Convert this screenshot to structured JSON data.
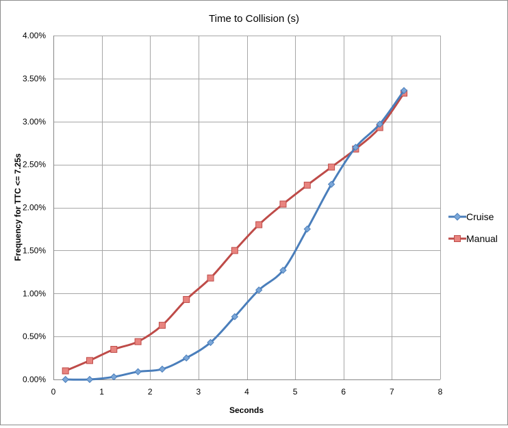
{
  "chart_data": {
    "type": "line",
    "title": "Time to Collision (s)",
    "xlabel": "Seconds",
    "ylabel": "Frequency for TTC <= 7.25s",
    "xlim": [
      0,
      8
    ],
    "ylim": [
      0,
      0.04
    ],
    "x_ticks": [
      "0",
      "1",
      "2",
      "3",
      "4",
      "5",
      "6",
      "7",
      "8"
    ],
    "y_ticks": [
      "0.00%",
      "0.50%",
      "1.00%",
      "1.50%",
      "2.00%",
      "2.50%",
      "3.00%",
      "3.50%",
      "4.00%"
    ],
    "grid": true,
    "legend_position": "right",
    "x": [
      0.25,
      0.75,
      1.25,
      1.75,
      2.25,
      2.75,
      3.25,
      3.75,
      4.25,
      4.75,
      5.25,
      5.75,
      6.25,
      6.75,
      7.25
    ],
    "series": [
      {
        "name": "Cruise",
        "color": "#4a7ebb",
        "marker": "diamond",
        "values": [
          0.0,
          0.0,
          0.0003,
          0.0009,
          0.0012,
          0.0025,
          0.0043,
          0.0073,
          0.0104,
          0.0127,
          0.0175,
          0.0227,
          0.027,
          0.0297,
          0.0336
        ]
      },
      {
        "name": "Manual",
        "color": "#be4b48",
        "fill": "#e8847f",
        "marker": "square",
        "values": [
          0.001,
          0.0022,
          0.0035,
          0.0044,
          0.0063,
          0.0093,
          0.0118,
          0.015,
          0.018,
          0.0204,
          0.0226,
          0.0247,
          0.0268,
          0.0293,
          0.0333
        ]
      }
    ]
  }
}
